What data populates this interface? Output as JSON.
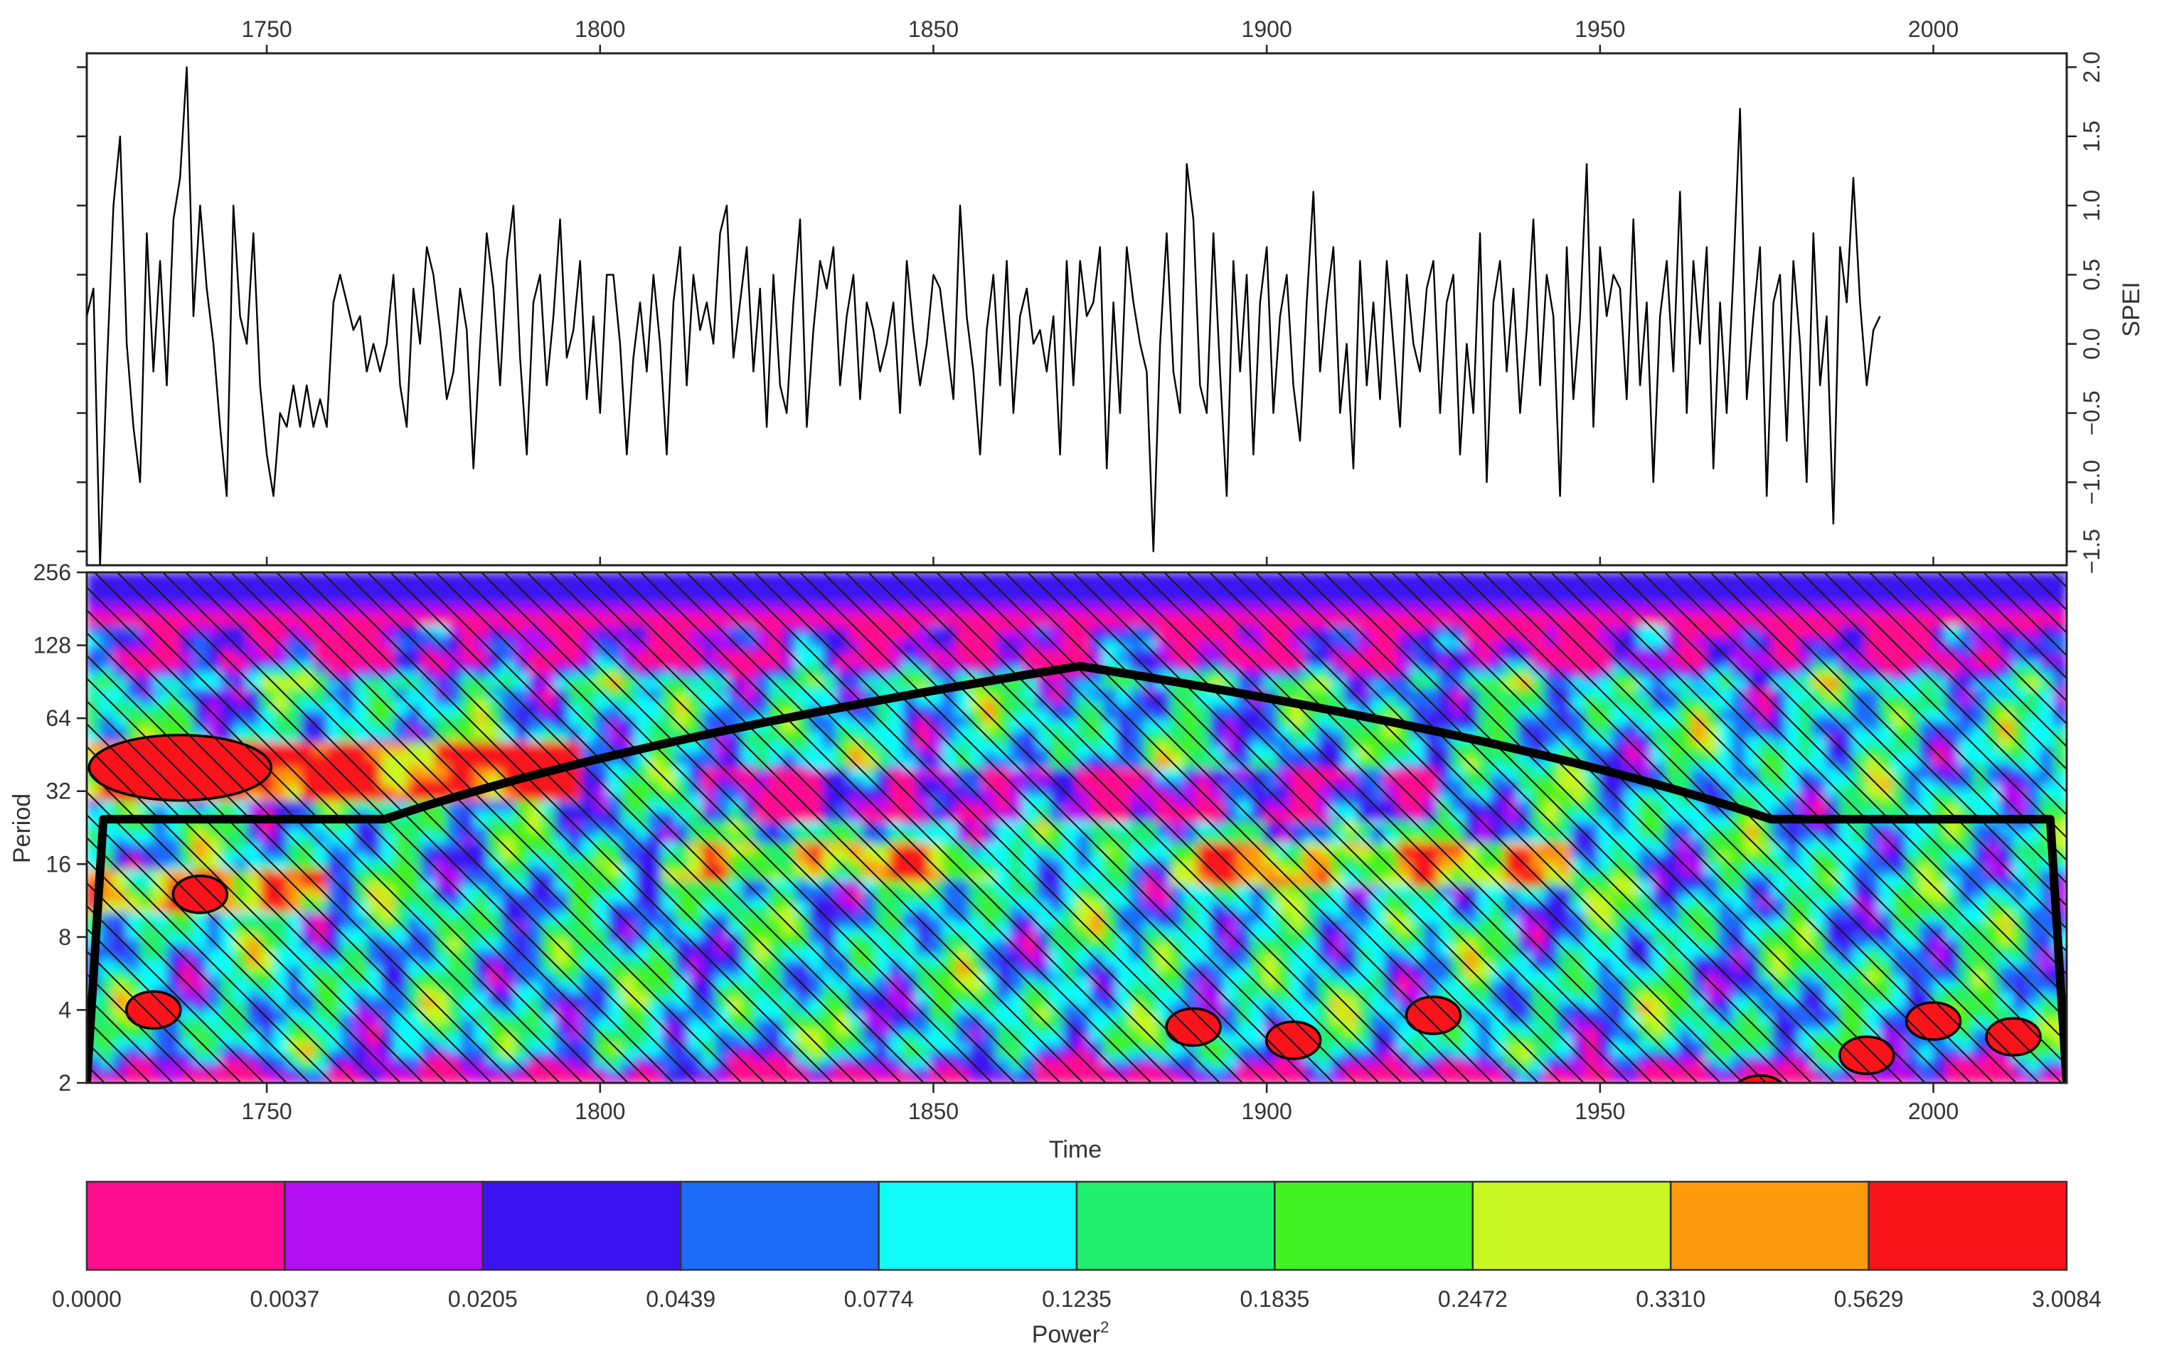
{
  "chart_data": [
    {
      "type": "line",
      "panel": "top",
      "ylabel": "SPEI",
      "xlim": [
        1723,
        2020
      ],
      "ylim": [
        -1.6,
        2.1
      ],
      "x_ticks": [
        "1750",
        "1800",
        "1850",
        "1900",
        "1950",
        "2000"
      ],
      "y_ticks": [
        "−1.5",
        "−1.0",
        "−0.5",
        "0.0",
        "0.5",
        "1.0",
        "1.5",
        "2.0"
      ],
      "x_tick_values": [
        1750,
        1800,
        1850,
        1900,
        1950,
        2000
      ],
      "y_tick_values": [
        -1.5,
        -1.0,
        -0.5,
        0.0,
        0.5,
        1.0,
        1.5,
        2.0
      ],
      "grid": false,
      "series": [
        {
          "x_start": 1723,
          "x_step": 1,
          "values": [
            0.2,
            0.4,
            -1.6,
            -0.2,
            1.0,
            1.5,
            0.0,
            -0.6,
            -1.0,
            0.8,
            -0.2,
            0.6,
            -0.3,
            0.9,
            1.2,
            2.0,
            0.2,
            1.0,
            0.4,
            0.0,
            -0.6,
            -1.1,
            1.0,
            0.2,
            0.0,
            0.8,
            -0.3,
            -0.8,
            -1.1,
            -0.5,
            -0.6,
            -0.3,
            -0.6,
            -0.3,
            -0.6,
            -0.4,
            -0.6,
            0.3,
            0.5,
            0.3,
            0.1,
            0.2,
            -0.2,
            0.0,
            -0.2,
            0.0,
            0.5,
            -0.3,
            -0.6,
            0.4,
            0.0,
            0.7,
            0.5,
            0.1,
            -0.4,
            -0.2,
            0.4,
            0.1,
            -0.9,
            0.0,
            0.8,
            0.4,
            -0.3,
            0.6,
            1.0,
            -0.1,
            -0.8,
            0.3,
            0.5,
            -0.3,
            0.2,
            0.9,
            -0.1,
            0.1,
            0.6,
            -0.4,
            0.2,
            -0.5,
            0.5,
            0.5,
            0.0,
            -0.8,
            -0.1,
            0.3,
            -0.2,
            0.5,
            0.0,
            -0.8,
            0.3,
            0.7,
            -0.3,
            0.5,
            0.1,
            0.3,
            0.0,
            0.8,
            1.0,
            -0.1,
            0.3,
            0.7,
            -0.2,
            0.4,
            -0.6,
            0.5,
            -0.3,
            -0.5,
            0.3,
            0.9,
            -0.6,
            0.1,
            0.6,
            0.4,
            0.7,
            -0.3,
            0.2,
            0.5,
            -0.4,
            0.3,
            0.1,
            -0.2,
            0.0,
            0.3,
            -0.5,
            0.6,
            0.1,
            -0.3,
            0.0,
            0.5,
            0.4,
            0.0,
            -0.4,
            1.0,
            0.2,
            -0.2,
            -0.8,
            0.1,
            0.5,
            -0.3,
            0.6,
            -0.5,
            0.2,
            0.4,
            0.0,
            0.1,
            -0.2,
            0.2,
            -0.8,
            0.6,
            -0.3,
            0.6,
            0.2,
            0.3,
            0.7,
            -0.9,
            0.3,
            -0.5,
            0.7,
            0.3,
            0.0,
            -0.2,
            -1.5,
            0.0,
            0.8,
            -0.2,
            -0.5,
            1.3,
            0.9,
            -0.3,
            -0.5,
            0.8,
            -0.2,
            -1.1,
            0.6,
            -0.2,
            0.5,
            -0.8,
            0.3,
            0.7,
            -0.5,
            0.2,
            0.5,
            -0.3,
            -0.7,
            0.3,
            1.1,
            -0.2,
            0.3,
            0.7,
            -0.5,
            0.0,
            -0.9,
            0.6,
            -0.3,
            0.3,
            -0.4,
            0.6,
            0.0,
            -0.6,
            0.5,
            0.0,
            -0.2,
            0.4,
            0.6,
            -0.5,
            0.3,
            0.5,
            -0.8,
            0.0,
            -0.5,
            0.8,
            -1.0,
            0.3,
            0.6,
            -0.2,
            0.4,
            -0.5,
            0.1,
            0.9,
            -0.3,
            0.5,
            0.2,
            -1.1,
            0.7,
            -0.4,
            0.2,
            1.3,
            -0.6,
            0.7,
            0.2,
            0.5,
            0.4,
            -0.4,
            0.9,
            -0.3,
            0.3,
            -1.0,
            0.2,
            0.6,
            -0.2,
            1.1,
            -0.5,
            0.6,
            0.0,
            0.7,
            -0.9,
            0.3,
            -0.5,
            0.5,
            1.7,
            -0.4,
            0.2,
            0.7,
            -1.1,
            0.3,
            0.5,
            -0.7,
            0.6,
            0.0,
            -1.0,
            0.8,
            -0.3,
            0.2,
            -1.3,
            0.7,
            0.3,
            1.2,
            0.3,
            -0.3,
            0.1,
            0.2
          ]
        }
      ]
    },
    {
      "type": "heatmap",
      "panel": "bottom",
      "xlabel": "Time",
      "ylabel": "Period",
      "xlim": [
        1723,
        2020
      ],
      "ylim_log2": [
        1,
        8
      ],
      "x_ticks": [
        "1750",
        "1800",
        "1850",
        "1900",
        "1950",
        "2000"
      ],
      "y_ticks": [
        "2",
        "4",
        "8",
        "16",
        "32",
        "64",
        "128",
        "256"
      ],
      "x_tick_values": [
        1750,
        1800,
        1850,
        1900,
        1950,
        2000
      ],
      "y_tick_values": [
        2,
        4,
        8,
        16,
        32,
        64,
        128,
        256
      ],
      "cone_of_influence_peak_period": 105,
      "cone_of_influence_peak_year": 1872,
      "significant_regions": [
        {
          "x": 1737,
          "period": 40
        },
        {
          "x": 1740,
          "period": 12
        },
        {
          "x": 1733,
          "period": 4
        },
        {
          "x": 1889,
          "period": 3.4
        },
        {
          "x": 1904,
          "period": 3.0
        },
        {
          "x": 1925,
          "period": 3.8
        },
        {
          "x": 1974,
          "period": 1.8
        },
        {
          "x": 1990,
          "period": 2.6
        },
        {
          "x": 2000,
          "period": 3.6
        },
        {
          "x": 2012,
          "period": 3.1
        }
      ]
    }
  ],
  "legend": {
    "title": "Power",
    "title_sup": "2",
    "colors": [
      "#ff0d8f",
      "#b40ff2",
      "#3b12f0",
      "#1e6bfa",
      "#10fbf7",
      "#22ee6e",
      "#42f222",
      "#c9f724",
      "#ff9a0d",
      "#f9131a"
    ],
    "labels": [
      "0.0000",
      "0.0037",
      "0.0205",
      "0.0439",
      "0.0774",
      "0.1235",
      "0.1835",
      "0.2472",
      "0.3310",
      "0.5629",
      "3.0084"
    ]
  },
  "colors": {
    "cone_line": "#000000",
    "series_line": "#000000",
    "axis": "#222222"
  }
}
